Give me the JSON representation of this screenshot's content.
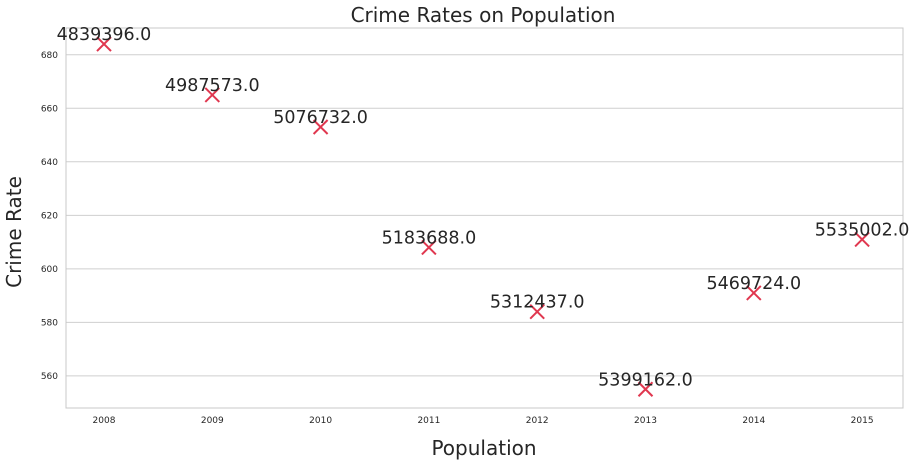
{
  "colors": {
    "marker": "#e0374f",
    "grid": "#cfcfcf",
    "text": "#262626"
  },
  "chart_data": {
    "type": "scatter",
    "title": "Crime Rates on Population",
    "xlabel": "Population",
    "ylabel": "Crime Rate",
    "marker": "x",
    "grid": "horizontal",
    "x": [
      "2008",
      "2009",
      "2010",
      "2011",
      "2012",
      "2013",
      "2014",
      "2015"
    ],
    "y": [
      684,
      665,
      653,
      608,
      584,
      555,
      591,
      611
    ],
    "point_labels": [
      "4839396.0",
      "4987573.0",
      "5076732.0",
      "5183688.0",
      "5312437.0",
      "5399162.0",
      "5469724.0",
      "5535002.0"
    ],
    "ylim": [
      548,
      690
    ],
    "yticks": [
      560,
      580,
      600,
      620,
      640,
      660,
      680
    ]
  }
}
